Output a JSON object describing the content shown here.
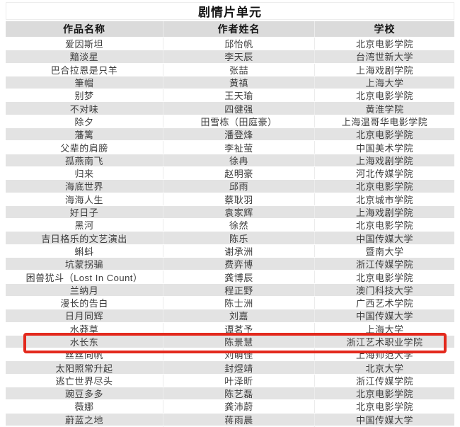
{
  "page_title": "剧情片单元",
  "table": {
    "headers": [
      "作品名称",
      "作者姓名",
      "学校"
    ],
    "rows": [
      {
        "work": "爱因斯坦",
        "author": "邱怡帆",
        "school": "北京电影学院"
      },
      {
        "work": "黯淡星",
        "author": "李天辰",
        "school": "台湾世新大学"
      },
      {
        "work": "巴合拉恩是只羊",
        "author": "张喆",
        "school": "上海戏剧学院"
      },
      {
        "work": "筆帽",
        "author": "黄禛",
        "school": "上海大学"
      },
      {
        "work": "别梦",
        "author": "王天瑜",
        "school": "北京电影学院"
      },
      {
        "work": "不对味",
        "author": "四健强",
        "school": "黄淮学院"
      },
      {
        "work": "除夕",
        "author": "田雪栋（田庭豪）",
        "school": "上海温哥华电影学院"
      },
      {
        "work": "藩篱",
        "author": "潘登烽",
        "school": "北京电影学院"
      },
      {
        "work": "父辈的肩膀",
        "author": "李祉萤",
        "school": "中国美术学院"
      },
      {
        "work": "孤燕南飞",
        "author": "徐冉",
        "school": "上海戏剧学院"
      },
      {
        "work": "归来",
        "author": "赵明豪",
        "school": "河北传媒学院"
      },
      {
        "work": "海底世界",
        "author": "邱雨",
        "school": "北京电影学院"
      },
      {
        "work": "海海人生",
        "author": "蔡耿羽",
        "school": "北京城市学院"
      },
      {
        "work": "好日子",
        "author": "袁家辉",
        "school": "上海戏剧学院"
      },
      {
        "work": "黑河",
        "author": "徐然",
        "school": "北京电影学院"
      },
      {
        "work": "吉日格乐的文艺演出",
        "author": "陈乐",
        "school": "中国传媒大学"
      },
      {
        "work": "蝌蚪",
        "author": "谢承洲",
        "school": "暨南大学"
      },
      {
        "work": "坑蒙拐骗",
        "author": "费弈博",
        "school": "浙江传媒学院"
      },
      {
        "work": "困兽犹斗（Lost In Count）",
        "author": "龚博辰",
        "school": "北京电影学院"
      },
      {
        "work": "兰纳月",
        "author": "程正野",
        "school": "澳门科技大学"
      },
      {
        "work": "漫长的告白",
        "author": "陈士洲",
        "school": "广西艺术学院"
      },
      {
        "work": "日月同辉",
        "author": "刘嘉",
        "school": "中国传媒大学"
      },
      {
        "work": "水莽草",
        "author": "谭茗予",
        "school": "上海大学"
      },
      {
        "work": "水长东",
        "author": "陈景慧",
        "school": "浙江艺术职业学院"
      },
      {
        "work": "丝丝向帆",
        "author": "刘萌佳",
        "school": "上海师范大学"
      },
      {
        "work": "太阳照常升起",
        "author": "封煜靖",
        "school": "北京大学"
      },
      {
        "work": "逃亡世界尽头",
        "author": "叶泽昕",
        "school": "浙江传媒学院"
      },
      {
        "work": "豌豆多多",
        "author": "陈艺磊",
        "school": "北京电影学院"
      },
      {
        "work": "薇娜",
        "author": "龚沛蔚",
        "school": "北京电影学院"
      },
      {
        "work": "蔚蓝之地",
        "author": "蒋雨晨",
        "school": "中国传媒大学"
      }
    ],
    "highlighted_row_index": 23,
    "highlighted_row": {
      "work": "水长东",
      "author": "陈景慧",
      "school": "浙江艺术职业学院"
    }
  },
  "colors": {
    "header_bg": "#dbdbdb",
    "alt_row_bg": "#e3e3e3",
    "highlight_border": "#e3291d",
    "data_text": "#3d3d3d",
    "header_text": "#141414"
  }
}
